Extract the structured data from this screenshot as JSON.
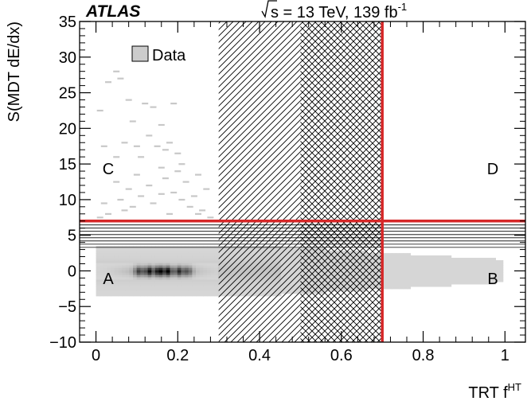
{
  "header": {
    "experiment": "ATLAS",
    "energy_prefix": "s = 13 TeV, 139 fb",
    "energy_exp": "-1"
  },
  "legend": {
    "label": "Data"
  },
  "axes": {
    "xlabel_main": "TRT f",
    "xlabel_sup": "HT",
    "ylabel": "S(MDT dE/dx)"
  },
  "regions": {
    "a": "A",
    "b": "B",
    "c": "C",
    "d": "D"
  },
  "colors": {
    "cut_line": "#d62728",
    "density_low": "#d6d6d6",
    "density_high": "#000000"
  },
  "chart_data": {
    "type": "heatmap",
    "title": "",
    "xlabel": "TRT f^HT",
    "ylabel": "S(MDT dE/dx)",
    "xlim": [
      -0.04,
      1.05
    ],
    "ylim": [
      -10,
      35
    ],
    "x_ticks": [
      0,
      0.2,
      0.4,
      0.6,
      0.8,
      1
    ],
    "x_tick_labels": [
      "0",
      "0.2",
      "0.4",
      "0.6",
      "0.8",
      "1"
    ],
    "y_ticks": [
      -10,
      -5,
      0,
      5,
      10,
      15,
      20,
      25,
      30,
      35
    ],
    "y_tick_labels": [
      "−10",
      "−5",
      "0",
      "5",
      "10",
      "15",
      "20",
      "25",
      "30",
      "35"
    ],
    "series": [
      {
        "name": "Data"
      }
    ],
    "cuts": {
      "x": 0.7,
      "y": 7
    },
    "hatched_x_bands": [
      {
        "x": [
          0.3,
          0.5
        ],
        "pattern": "single"
      },
      {
        "x": [
          0.5,
          0.7
        ],
        "pattern": "cross"
      }
    ],
    "hatched_y_band": {
      "y": [
        3.3,
        7
      ],
      "pattern": "horizontal"
    },
    "region_labels": [
      {
        "label": "A",
        "x": 0.02,
        "y": -1
      },
      {
        "label": "B",
        "x": 0.97,
        "y": -1
      },
      {
        "label": "C",
        "x": 0.02,
        "y": 14.5
      },
      {
        "label": "D",
        "x": 0.97,
        "y": 14.5
      }
    ],
    "sparse_points": [
      [
        0.01,
        22.5
      ],
      [
        0.02,
        17.5
      ],
      [
        0.03,
        26.5
      ],
      [
        0.05,
        28
      ],
      [
        0.06,
        27
      ],
      [
        0.07,
        18
      ],
      [
        0.05,
        16
      ],
      [
        0.09,
        21
      ],
      [
        0.1,
        17.5
      ],
      [
        0.11,
        16
      ],
      [
        0.13,
        19
      ],
      [
        0.14,
        23
      ],
      [
        0.16,
        20.5
      ],
      [
        0.17,
        17
      ],
      [
        0.19,
        23.5
      ],
      [
        0.2,
        16.5
      ],
      [
        0.16,
        14.5
      ],
      [
        0.2,
        14
      ],
      [
        0.21,
        15
      ],
      [
        0.08,
        24
      ],
      [
        0.12,
        23.5
      ],
      [
        0.18,
        18
      ],
      [
        0.15,
        17.5
      ],
      [
        0.22,
        12.5
      ],
      [
        0.25,
        13.5
      ],
      [
        0.12,
        31
      ],
      [
        0.1,
        13.5
      ],
      [
        0.08,
        11.5
      ],
      [
        0.05,
        12.5
      ],
      [
        0.13,
        12
      ],
      [
        0.17,
        13
      ],
      [
        0.19,
        11
      ],
      [
        0.24,
        10.5
      ],
      [
        0.27,
        11.5
      ],
      [
        0.06,
        10
      ],
      [
        0.02,
        9.5
      ],
      [
        0.11,
        10.5
      ],
      [
        0.23,
        9
      ],
      [
        0.26,
        8.5
      ],
      [
        0.28,
        7.5
      ],
      [
        0.03,
        8
      ],
      [
        0.07,
        8.5
      ],
      [
        0.14,
        9.5
      ],
      [
        0.18,
        8
      ],
      [
        0.21,
        10
      ],
      [
        0.01,
        7.5
      ],
      [
        0.09,
        9
      ],
      [
        0.16,
        10.8
      ],
      [
        0.25,
        8
      ]
    ]
  }
}
